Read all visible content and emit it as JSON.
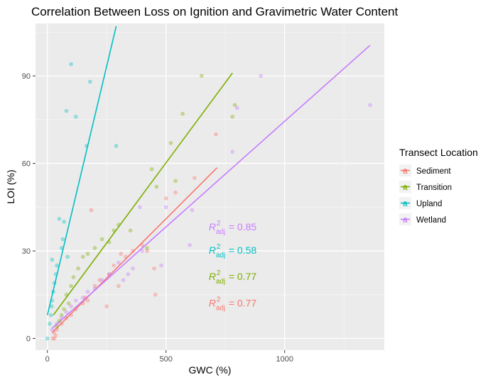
{
  "chart_data": {
    "type": "scatter",
    "title": "Correlation Between Loss on Ignition and Gravimetric Water Content",
    "xlabel": "GWC (%)",
    "ylabel": "LOI (%)",
    "xlim": [
      -50,
      1420
    ],
    "ylim": [
      -4,
      108
    ],
    "xticks": [
      0,
      500,
      1000
    ],
    "yticks": [
      0,
      30,
      60,
      90
    ],
    "grid": true,
    "legend": {
      "title": "Transect Location",
      "position": "right",
      "key_glyph": "a"
    },
    "series": [
      {
        "name": "Sediment",
        "color": "#F8766D",
        "points": [
          [
            22,
            0
          ],
          [
            28,
            2
          ],
          [
            30,
            0
          ],
          [
            35,
            1
          ],
          [
            40,
            3
          ],
          [
            60,
            5
          ],
          [
            80,
            7
          ],
          [
            100,
            8
          ],
          [
            120,
            10
          ],
          [
            150,
            12
          ],
          [
            160,
            14
          ],
          [
            170,
            13
          ],
          [
            185,
            44
          ],
          [
            200,
            18
          ],
          [
            220,
            20
          ],
          [
            250,
            11
          ],
          [
            260,
            22
          ],
          [
            280,
            25
          ],
          [
            300,
            18
          ],
          [
            310,
            29
          ],
          [
            330,
            28
          ],
          [
            360,
            30
          ],
          [
            400,
            32
          ],
          [
            420,
            30
          ],
          [
            450,
            24
          ],
          [
            455,
            15
          ],
          [
            500,
            48
          ],
          [
            540,
            50
          ],
          [
            620,
            55
          ],
          [
            710,
            70
          ]
        ],
        "fit": {
          "x": [
            20,
            715
          ],
          "y": [
            2,
            58.5
          ]
        },
        "annotation": {
          "text": "= 0.77",
          "symbol": "R",
          "sup": "2",
          "sub": "adj",
          "x": 680,
          "y": 11
        }
      },
      {
        "name": "Transition",
        "color": "#7CAE00",
        "points": [
          [
            40,
            4
          ],
          [
            50,
            6
          ],
          [
            60,
            8
          ],
          [
            70,
            10
          ],
          [
            80,
            15
          ],
          [
            90,
            12
          ],
          [
            100,
            18
          ],
          [
            110,
            21
          ],
          [
            130,
            24
          ],
          [
            150,
            28
          ],
          [
            170,
            29
          ],
          [
            200,
            31
          ],
          [
            230,
            34
          ],
          [
            260,
            33
          ],
          [
            280,
            37
          ],
          [
            300,
            39
          ],
          [
            350,
            37
          ],
          [
            420,
            31
          ],
          [
            440,
            58
          ],
          [
            460,
            52
          ],
          [
            520,
            67
          ],
          [
            540,
            54
          ],
          [
            570,
            77
          ],
          [
            650,
            90
          ],
          [
            780,
            76
          ],
          [
            790,
            80
          ]
        ],
        "fit": {
          "x": [
            25,
            780
          ],
          "y": [
            8,
            91
          ]
        },
        "annotation": {
          "text": "= 0.77",
          "symbol": "R",
          "sup": "2",
          "sub": "adj",
          "x": 680,
          "y": 20
        }
      },
      {
        "name": "Upland",
        "color": "#00BFC4",
        "points": [
          [
            0,
            0
          ],
          [
            10,
            5
          ],
          [
            15,
            8
          ],
          [
            18,
            11
          ],
          [
            20,
            13
          ],
          [
            25,
            16
          ],
          [
            30,
            19
          ],
          [
            35,
            22
          ],
          [
            40,
            25
          ],
          [
            20,
            27
          ],
          [
            60,
            31
          ],
          [
            65,
            34
          ],
          [
            70,
            40
          ],
          [
            50,
            41
          ],
          [
            85,
            28
          ],
          [
            80,
            78
          ],
          [
            100,
            94
          ],
          [
            120,
            76
          ],
          [
            165,
            66
          ],
          [
            180,
            88
          ],
          [
            290,
            66
          ]
        ],
        "fit": {
          "x": [
            0,
            290
          ],
          "y": [
            8,
            107
          ]
        },
        "annotation": {
          "text": "= 0.58",
          "symbol": "R",
          "sup": "2",
          "sub": "adj",
          "x": 680,
          "y": 29
        }
      },
      {
        "name": "Wetland",
        "color": "#C77CFF",
        "points": [
          [
            20,
            3
          ],
          [
            40,
            5
          ],
          [
            60,
            7
          ],
          [
            80,
            9
          ],
          [
            100,
            11
          ],
          [
            120,
            13
          ],
          [
            150,
            14
          ],
          [
            170,
            16
          ],
          [
            200,
            17
          ],
          [
            230,
            20
          ],
          [
            260,
            22
          ],
          [
            300,
            26
          ],
          [
            320,
            20
          ],
          [
            340,
            22
          ],
          [
            360,
            24
          ],
          [
            390,
            45
          ],
          [
            400,
            30
          ],
          [
            480,
            25
          ],
          [
            500,
            45
          ],
          [
            600,
            32
          ],
          [
            610,
            44
          ],
          [
            780,
            64
          ],
          [
            800,
            79
          ],
          [
            900,
            90
          ],
          [
            1360,
            80
          ]
        ],
        "fit": {
          "x": [
            20,
            1360
          ],
          "y": [
            3.5,
            100.5
          ]
        },
        "annotation": {
          "text": "= 0.85",
          "symbol": "R",
          "sup": "2",
          "sub": "adj",
          "x": 680,
          "y": 37
        }
      }
    ]
  }
}
